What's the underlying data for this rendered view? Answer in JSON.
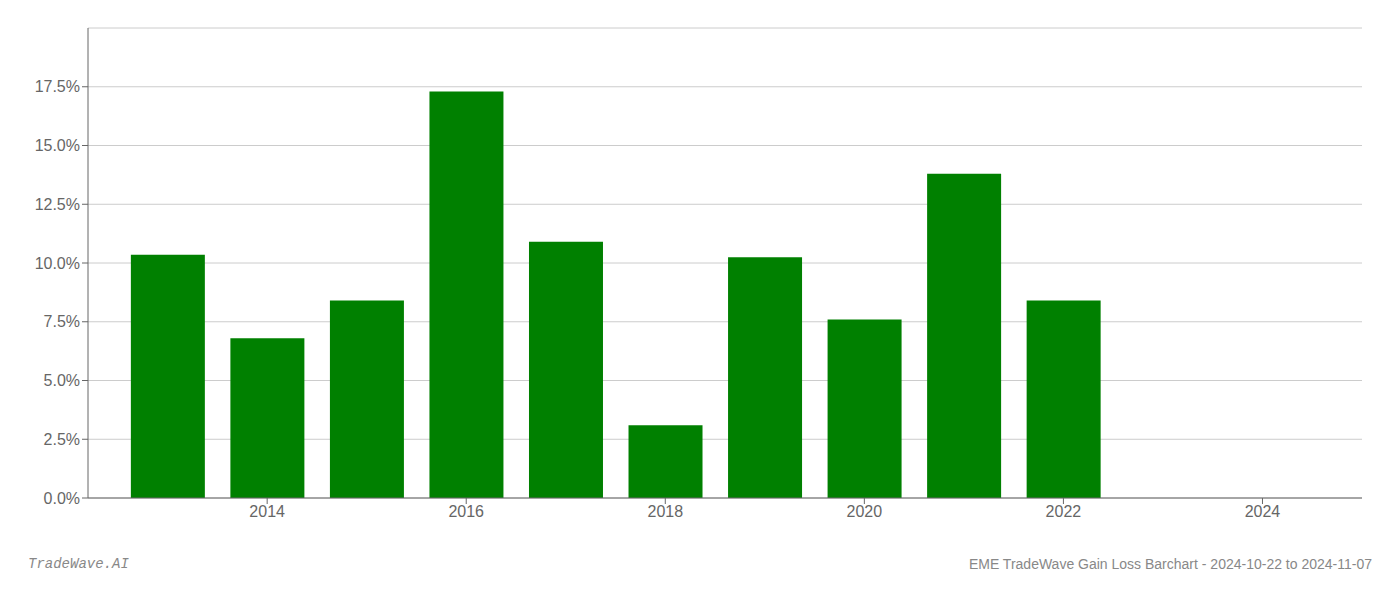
{
  "chart_data": {
    "type": "bar",
    "x": [
      2013,
      2014,
      2015,
      2016,
      2017,
      2018,
      2019,
      2020,
      2021,
      2022,
      2023
    ],
    "values": [
      0.1035,
      0.068,
      0.084,
      0.173,
      0.109,
      0.031,
      0.1025,
      0.076,
      0.138,
      0.084,
      0.0
    ],
    "color": "#008000",
    "xlim": [
      2012.2,
      2025.0
    ],
    "xticks": [
      2014,
      2016,
      2018,
      2020,
      2022,
      2024
    ],
    "ylim": [
      0,
      0.2
    ],
    "yticks": [
      {
        "value": 0.0,
        "label": "0.0%"
      },
      {
        "value": 0.025,
        "label": "2.5%"
      },
      {
        "value": 0.05,
        "label": "5.0%"
      },
      {
        "value": 0.075,
        "label": "7.5%"
      },
      {
        "value": 0.1,
        "label": "10.0%"
      },
      {
        "value": 0.125,
        "label": "12.5%"
      },
      {
        "value": 0.15,
        "label": "15.0%"
      },
      {
        "value": 0.175,
        "label": "17.5%"
      }
    ],
    "grid": true,
    "annotations": [
      "TradeWave.AI",
      "EME TradeWave Gain Loss Barchart - 2024-10-22 to 2024-11-07"
    ]
  }
}
